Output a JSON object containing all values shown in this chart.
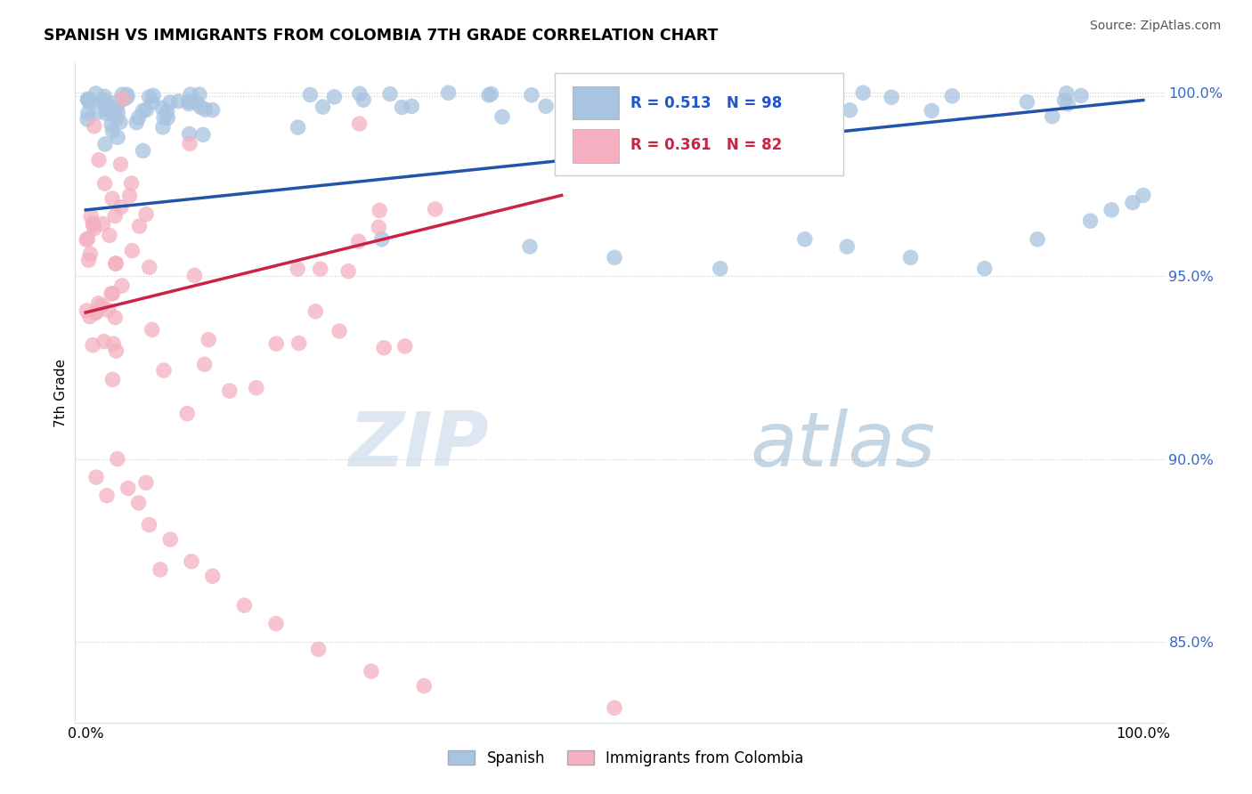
{
  "title": "SPANISH VS IMMIGRANTS FROM COLOMBIA 7TH GRADE CORRELATION CHART",
  "source": "Source: ZipAtlas.com",
  "ylabel": "7th Grade",
  "xlim": [
    0.0,
    1.0
  ],
  "ylim": [
    0.828,
    1.008
  ],
  "yticks": [
    0.85,
    0.9,
    0.95,
    1.0
  ],
  "ytick_labels": [
    "85.0%",
    "90.0%",
    "95.0%",
    "100.0%"
  ],
  "legend_R_blue": "R = 0.513",
  "legend_N_blue": "N = 98",
  "legend_R_pink": "R = 0.361",
  "legend_N_pink": "N = 82",
  "legend_label_blue": "Spanish",
  "legend_label_pink": "Immigrants from Colombia",
  "blue_color": "#a8c4e0",
  "pink_color": "#f4b0c0",
  "blue_line_color": "#2255aa",
  "pink_line_color": "#cc2244",
  "watermark_zip": "ZIP",
  "watermark_atlas": "atlas"
}
